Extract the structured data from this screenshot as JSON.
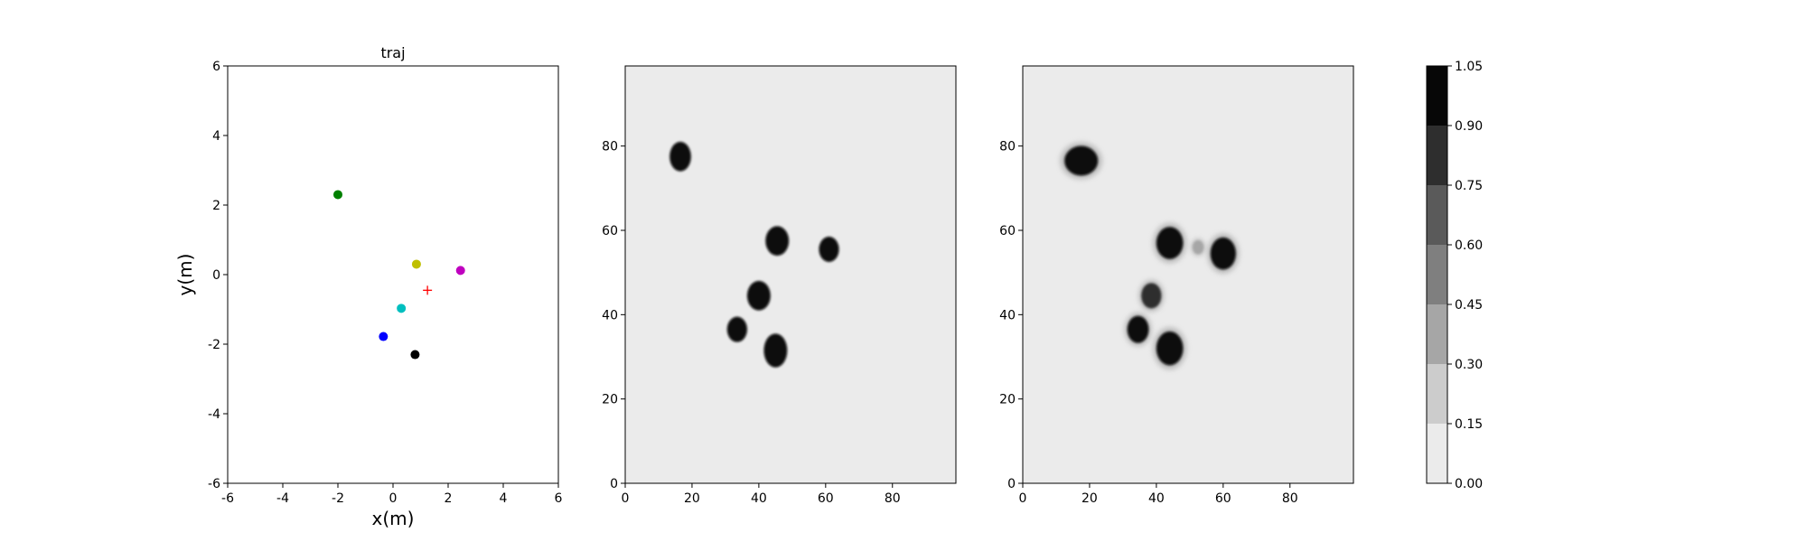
{
  "colors": {
    "heatmap_background": "#ebebeb",
    "colorbar_levels": [
      "#ebebeb",
      "#cccccc",
      "#a6a6a6",
      "#7f7f7f",
      "#5a5a5a",
      "#2e2e2e",
      "#070707"
    ]
  },
  "chart_data": [
    {
      "type": "scatter",
      "title": "traj",
      "xlabel": "x(m)",
      "ylabel": "y(m)",
      "xlim": [
        -6,
        6
      ],
      "ylim": [
        -6,
        6
      ],
      "xticks": [
        -6,
        -4,
        -2,
        0,
        2,
        4,
        6
      ],
      "yticks": [
        -6,
        -4,
        -2,
        0,
        2,
        4,
        6
      ],
      "grid": false,
      "points": [
        {
          "x": -2.0,
          "y": 2.3,
          "color": "#008000",
          "marker": "circle"
        },
        {
          "x": 0.85,
          "y": 0.3,
          "color": "#bfbf00",
          "marker": "circle"
        },
        {
          "x": 2.45,
          "y": 0.12,
          "color": "#bf00bf",
          "marker": "circle"
        },
        {
          "x": 1.25,
          "y": -0.45,
          "color": "#ff0000",
          "marker": "plus"
        },
        {
          "x": 0.3,
          "y": -0.97,
          "color": "#00bfbf",
          "marker": "circle"
        },
        {
          "x": -0.35,
          "y": -1.78,
          "color": "#0000ff",
          "marker": "circle"
        },
        {
          "x": 0.8,
          "y": -2.3,
          "color": "#000000",
          "marker": "circle"
        }
      ]
    },
    {
      "type": "heatmap",
      "title": "",
      "xlim": [
        0,
        99
      ],
      "ylim": [
        0,
        99
      ],
      "xticks": [
        0,
        20,
        40,
        60,
        80
      ],
      "yticks": [
        0,
        20,
        40,
        60,
        80
      ],
      "blobs": [
        {
          "x": 16.5,
          "y": 77.5,
          "rx": 3.2,
          "ry": 3.5,
          "level": 1.0
        },
        {
          "x": 45.5,
          "y": 57.5,
          "rx": 3.5,
          "ry": 3.5,
          "level": 1.0
        },
        {
          "x": 61,
          "y": 55.5,
          "rx": 3.0,
          "ry": 3.0,
          "level": 1.0
        },
        {
          "x": 40,
          "y": 44.5,
          "rx": 3.5,
          "ry": 3.5,
          "level": 1.0
        },
        {
          "x": 33.5,
          "y": 36.5,
          "rx": 3.0,
          "ry": 3.0,
          "level": 1.0
        },
        {
          "x": 45,
          "y": 31.5,
          "rx": 3.5,
          "ry": 4.0,
          "level": 1.0
        }
      ]
    },
    {
      "type": "heatmap",
      "title": "",
      "xlim": [
        0,
        99
      ],
      "ylim": [
        0,
        99
      ],
      "xticks": [
        0,
        20,
        40,
        60,
        80
      ],
      "yticks": [
        0,
        20,
        40,
        60,
        80
      ],
      "blobs": [
        {
          "x": 17.5,
          "y": 76.5,
          "rx": 5.0,
          "ry": 3.5,
          "level": 1.0
        },
        {
          "x": 44,
          "y": 57,
          "rx": 4.0,
          "ry": 3.8,
          "level": 1.0
        },
        {
          "x": 52.5,
          "y": 56,
          "rx": 1.6,
          "ry": 1.6,
          "level": 0.3
        },
        {
          "x": 60,
          "y": 54.5,
          "rx": 3.8,
          "ry": 3.8,
          "level": 1.0
        },
        {
          "x": 38.5,
          "y": 44.5,
          "rx": 3.0,
          "ry": 3.0,
          "level": 0.85
        },
        {
          "x": 34.5,
          "y": 36.5,
          "rx": 3.2,
          "ry": 3.2,
          "level": 1.0
        },
        {
          "x": 44,
          "y": 32,
          "rx": 4.0,
          "ry": 4.0,
          "level": 1.0
        }
      ]
    },
    {
      "type": "colorbar",
      "boundaries": [
        0.0,
        0.15,
        0.3,
        0.45,
        0.6,
        0.75,
        0.9,
        1.05
      ],
      "tick_labels": [
        "0.00",
        "0.15",
        "0.30",
        "0.45",
        "0.60",
        "0.75",
        "0.90",
        "1.05"
      ]
    }
  ]
}
